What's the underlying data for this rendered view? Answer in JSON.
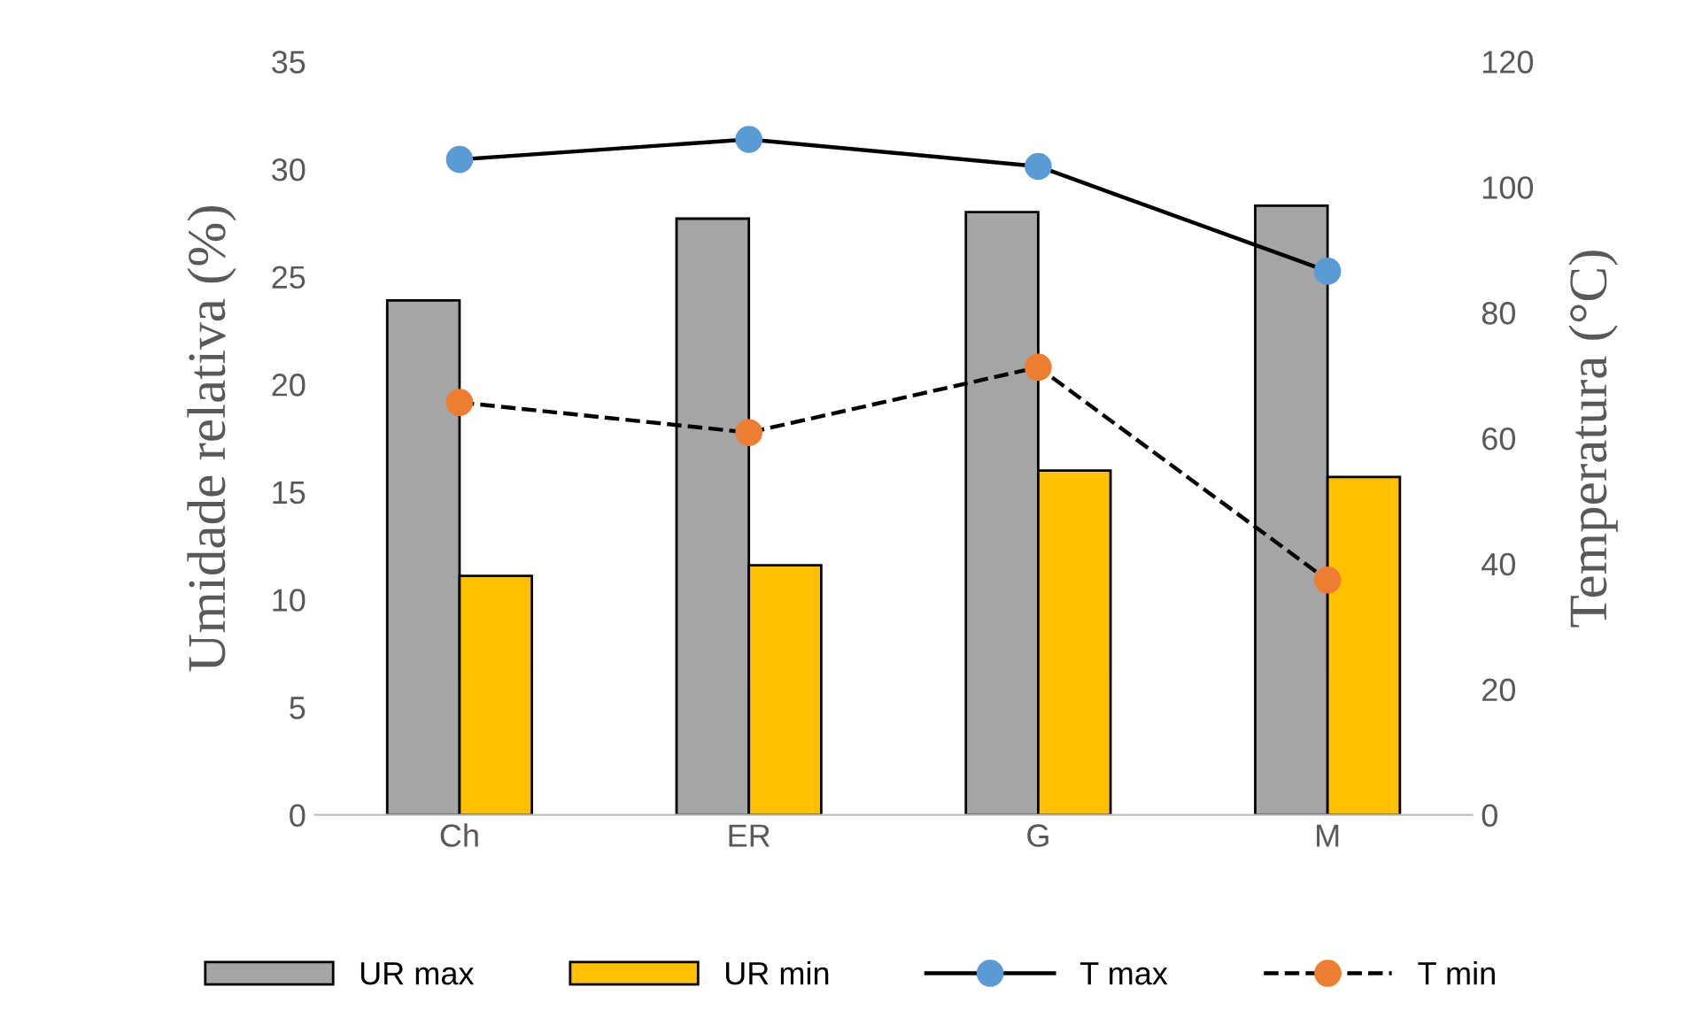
{
  "chart_data": {
    "type": "bar",
    "categories": [
      "Ch",
      "ER",
      "G",
      "M"
    ],
    "ylabel": "Umidade relativa (%)",
    "y2label": "Temperatura (°C)",
    "ylim": [
      0,
      35
    ],
    "yticks": [
      0,
      5,
      10,
      15,
      20,
      25,
      30,
      35
    ],
    "y2lim": [
      0,
      120
    ],
    "y2ticks": [
      0,
      20,
      40,
      60,
      80,
      100,
      120
    ],
    "legend": "bottom",
    "grid": false,
    "series": [
      {
        "name": "UR max",
        "color": "#a5a5a5",
        "values": [
          23.9,
          27.7,
          28.0,
          28.3
        ]
      },
      {
        "name": "UR min",
        "color": "#ffc000",
        "values": [
          11.1,
          11.6,
          16.0,
          15.7
        ]
      },
      {
        "name": "T max",
        "type": "line",
        "axis": "y2",
        "color": "#5b9bd5",
        "line_style": "solid",
        "marker": "circle",
        "values": [
          104.4,
          107.6,
          103.3,
          86.6
        ]
      },
      {
        "name": "T min",
        "type": "line",
        "axis": "y2",
        "color": "#ed7d31",
        "line_style": "dashed",
        "marker": "circle",
        "values": [
          65.7,
          60.9,
          71.3,
          37.4
        ]
      }
    ]
  }
}
